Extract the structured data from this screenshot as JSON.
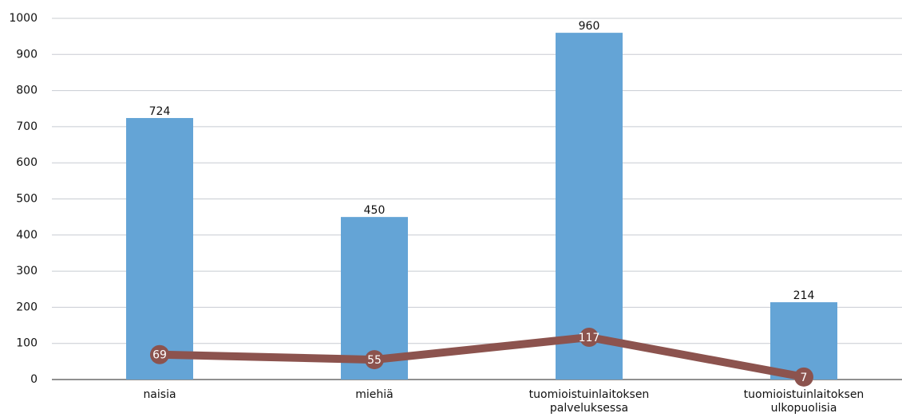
{
  "chart_data": {
    "type": "bar",
    "categories": [
      "naisia",
      "miehiä",
      "tuomioistuinlaitoksen palveluksessa",
      "tuomioistuinlaitoksen ulkopuolisia"
    ],
    "series": [
      {
        "type": "bar",
        "color": "#64a4d6",
        "values": [
          724,
          450,
          960,
          214
        ]
      },
      {
        "type": "line",
        "color": "#8c534e",
        "values": [
          69,
          55,
          117,
          7
        ]
      }
    ],
    "ylim": [
      0,
      1000
    ],
    "yticks": [
      0,
      100,
      200,
      300,
      400,
      500,
      600,
      700,
      800,
      900,
      1000
    ],
    "grid": true
  }
}
